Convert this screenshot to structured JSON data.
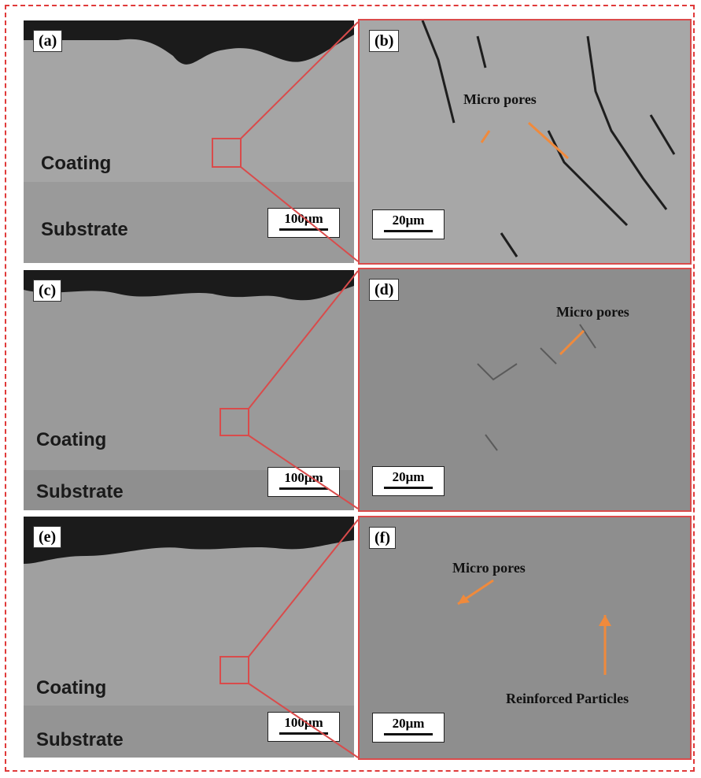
{
  "panels": [
    {
      "id": "a",
      "label": "(a)",
      "scale": "100μm",
      "coating": "Coating",
      "substrate": "Substrate"
    },
    {
      "id": "b",
      "label": "(b)",
      "scale": "20μm",
      "annotations": [
        "Micro pores"
      ]
    },
    {
      "id": "c",
      "label": "(c)",
      "scale": "100μm",
      "coating": "Coating",
      "substrate": "Substrate"
    },
    {
      "id": "d",
      "label": "(d)",
      "scale": "20μm",
      "annotations": [
        "Micro pores"
      ]
    },
    {
      "id": "e",
      "label": "(e)",
      "scale": "100μm",
      "coating": "Coating",
      "substrate": "Substrate"
    },
    {
      "id": "f",
      "label": "(f)",
      "scale": "20μm",
      "annotations": [
        "Micro pores",
        "Reinforced Particles"
      ]
    }
  ],
  "colors": {
    "frame": "#e03a3a",
    "zoom_lines": "#d94b4b",
    "arrows": "#f08a3c"
  }
}
